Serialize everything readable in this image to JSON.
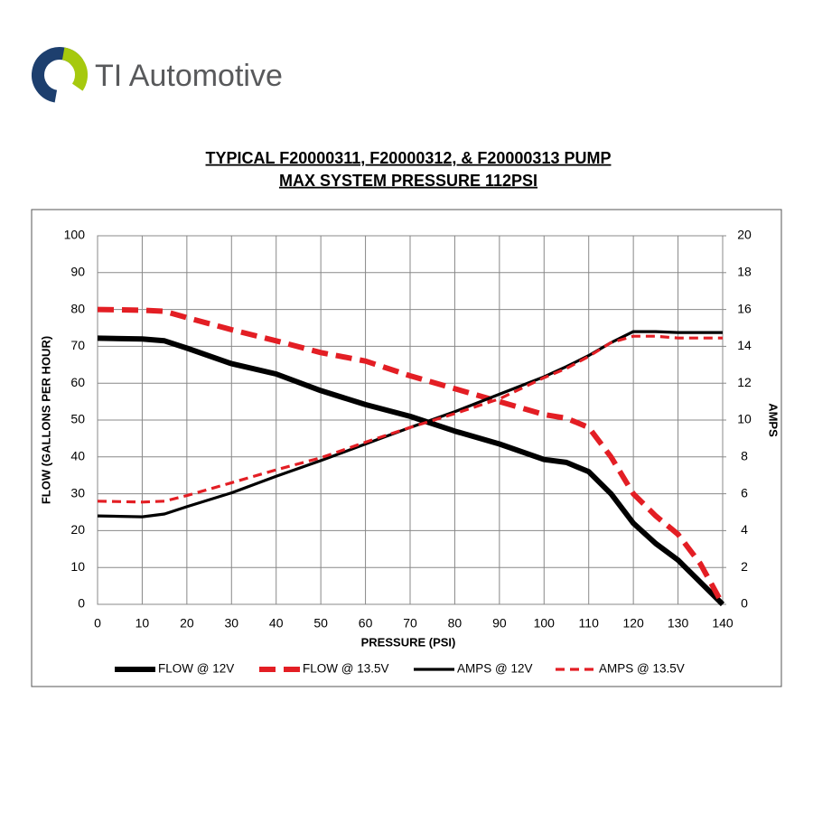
{
  "brand": "TI Automotive",
  "chart_data": {
    "type": "line",
    "title": [
      "TYPICAL F20000311, F20000312, & F20000313 PUMP",
      "MAX SYSTEM PRESSURE 112PSI"
    ],
    "x_label": "PRESSURE (PSI)",
    "y_label": "FLOW (GALLONS PER HOUR)",
    "y2_label": "AMPS",
    "x": [
      0,
      10,
      15,
      20,
      30,
      40,
      50,
      60,
      70,
      80,
      90,
      100,
      105,
      110,
      115,
      120,
      125,
      130,
      135,
      140
    ],
    "xlim": [
      0,
      140
    ],
    "xticks": [
      0,
      10,
      20,
      30,
      40,
      50,
      60,
      70,
      80,
      90,
      100,
      110,
      120,
      130,
      140
    ],
    "ylim": [
      0,
      100
    ],
    "yticks": [
      0,
      10,
      20,
      30,
      40,
      50,
      60,
      70,
      80,
      90,
      100
    ],
    "y2lim": [
      0,
      20
    ],
    "y2ticks": [
      0,
      2,
      4,
      6,
      8,
      10,
      12,
      14,
      16,
      18,
      20
    ],
    "grid": true,
    "legend": "bottom",
    "series": [
      {
        "name": "FLOW @ 12V",
        "color": "#000000",
        "dashed": false,
        "weight": "heavy",
        "values": [
          72.2,
          72,
          71.5,
          69.5,
          65.3,
          62.5,
          58,
          54.2,
          51,
          47,
          43.5,
          39.3,
          38.5,
          36,
          30,
          22,
          16.5,
          12,
          6,
          0
        ]
      },
      {
        "name": "FLOW @ 13.5V",
        "color": "#e31e24",
        "dashed": true,
        "weight": "heavy",
        "values": [
          80,
          79.8,
          79.5,
          77.8,
          74.5,
          71.5,
          68.3,
          66,
          62,
          58.5,
          55,
          51.5,
          50.5,
          48,
          40,
          30,
          24,
          19,
          11,
          0
        ]
      },
      {
        "name": "AMPS @ 12V",
        "color": "#000000",
        "dashed": false,
        "weight": "light",
        "axis": "y2",
        "values": [
          4.8,
          4.75,
          4.9,
          5.3,
          6.05,
          6.95,
          7.8,
          8.7,
          9.6,
          10.45,
          11.4,
          12.35,
          12.9,
          13.5,
          14.2,
          14.8,
          14.8,
          14.75,
          14.75,
          14.75
        ]
      },
      {
        "name": "AMPS @ 13.5V",
        "color": "#e31e24",
        "dashed": true,
        "weight": "light",
        "axis": "y2",
        "values": [
          5.6,
          5.55,
          5.6,
          5.9,
          6.6,
          7.3,
          7.95,
          8.8,
          9.6,
          10.35,
          11.15,
          12.3,
          12.8,
          13.45,
          14.2,
          14.55,
          14.55,
          14.45,
          14.45,
          14.45
        ]
      }
    ]
  }
}
